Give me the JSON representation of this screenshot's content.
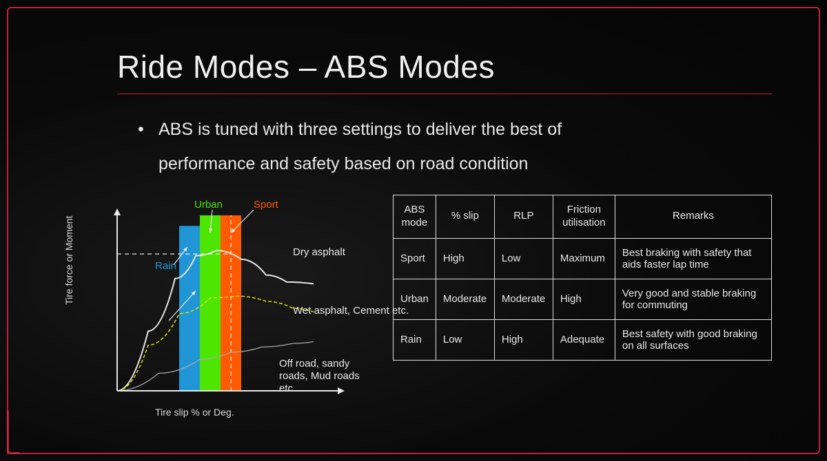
{
  "title": "Ride Modes – ABS Modes",
  "bullet": "ABS is tuned with three settings to deliver the best of performance and safety based on road condition",
  "accent_color": "#c41e3a",
  "chart": {
    "type": "custom",
    "y_label": "Tire force or Moment",
    "x_label": "Tire slip % or Deg.",
    "xlim": [
      0,
      100
    ],
    "ylim": [
      0,
      100
    ],
    "axis_color": "#e8e8e8",
    "bars": [
      {
        "name": "rain",
        "label": "Rain",
        "color": "#2196d6",
        "x": 30,
        "w": 10,
        "h": 94
      },
      {
        "name": "urban",
        "label": "Urban",
        "color": "#4de600",
        "x": 40,
        "w": 10,
        "h": 100
      },
      {
        "name": "sport",
        "label": "Sport",
        "color": "#ff5a00",
        "x": 50,
        "w": 10,
        "h": 100
      }
    ],
    "dash_h_y": 78,
    "dash_v_x": 55,
    "curves": {
      "dry": {
        "label": "Dry asphalt",
        "color": "#e8e8e8",
        "width": 2,
        "pts": [
          [
            0,
            0
          ],
          [
            15,
            34
          ],
          [
            28,
            64
          ],
          [
            38,
            77
          ],
          [
            48,
            80
          ],
          [
            60,
            75
          ],
          [
            72,
            66
          ],
          [
            82,
            62
          ],
          [
            95,
            61
          ]
        ]
      },
      "wet": {
        "label": "Wet asphalt, Cement etc.",
        "color": "#d4e600",
        "width": 1.5,
        "dash": "5,3",
        "pts": [
          [
            0,
            0
          ],
          [
            15,
            26
          ],
          [
            30,
            44
          ],
          [
            45,
            53
          ],
          [
            58,
            54
          ],
          [
            72,
            51
          ],
          [
            85,
            47
          ],
          [
            95,
            45
          ]
        ]
      },
      "off": {
        "label": "Off road, sandy roads, Mud roads etc.",
        "color": "#aaaaaa",
        "width": 1.3,
        "pts": [
          [
            0,
            0
          ],
          [
            20,
            10
          ],
          [
            40,
            18
          ],
          [
            55,
            22
          ],
          [
            70,
            25
          ],
          [
            85,
            27
          ],
          [
            95,
            28
          ]
        ]
      }
    }
  },
  "table": {
    "headers": [
      "ABS mode",
      "% slip",
      "RLP",
      "Friction utilisation",
      "Remarks"
    ],
    "rows": [
      [
        "Sport",
        "High",
        "Low",
        "Maximum",
        "Best braking with safety that aids faster lap time"
      ],
      [
        "Urban",
        "Moderate",
        "Moderate",
        "High",
        "Very good and stable  braking for commuting"
      ],
      [
        "Rain",
        "Low",
        "High",
        "Adequate",
        "Best safety with good braking on all surfaces"
      ]
    ]
  }
}
